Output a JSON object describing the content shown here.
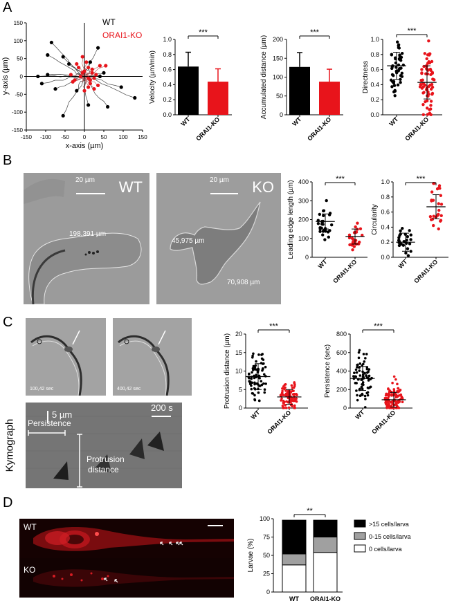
{
  "panels": {
    "A": "A",
    "B": "B",
    "C": "C",
    "D": "D"
  },
  "colors": {
    "wt": "#000000",
    "ko": "#e8141b",
    "mid": "#a0a0a0"
  },
  "trajectory": {
    "xlabel": "x-axis (µm)",
    "ylabel": "y-axis (µm)",
    "xticks": [
      "-150",
      "-100",
      "-50",
      "0",
      "50",
      "100",
      "150"
    ],
    "yticks": [
      "150",
      "100",
      "50",
      "0",
      "-50",
      "-100",
      "-150"
    ],
    "legend_wt": "WT",
    "legend_ko": "ORAI1-KO"
  },
  "cats": [
    "WT",
    "ORAI1-KO"
  ],
  "sig": {
    "three": "***",
    "two": "**"
  },
  "velocity": {
    "ylabel": "Velocity (µm/min)",
    "yticks": [
      "0.0",
      "0.2",
      "0.4",
      "0.6",
      "0.8",
      "1.0"
    ]
  },
  "accdist": {
    "ylabel": "Accumulated distance (µm)",
    "yticks": [
      "0",
      "50",
      "100",
      "150",
      "200"
    ]
  },
  "directness": {
    "ylabel": "Directness",
    "yticks": [
      "0.0",
      "0.2",
      "0.4",
      "0.6",
      "0.8",
      "1.0"
    ]
  },
  "leading": {
    "ylabel": "Leading edge length (µm)",
    "yticks": [
      "0",
      "100",
      "200",
      "300",
      "400"
    ]
  },
  "circularity": {
    "ylabel": "Circularity",
    "yticks": [
      "0.0",
      "0.2",
      "0.4",
      "0.6",
      "0.8",
      "1.0"
    ]
  },
  "protrusion": {
    "ylabel": "Protrusion distance (µm)",
    "yticks": [
      "0",
      "5",
      "10",
      "15",
      "20"
    ]
  },
  "persistence": {
    "ylabel": "Persistence (sec)",
    "yticks": [
      "0",
      "200",
      "400",
      "600",
      "800"
    ]
  },
  "larvae": {
    "ylabel": "Larvae (%)",
    "yticks": [
      "0",
      "25",
      "50",
      "75",
      "100"
    ],
    "legend": [
      ">15 cells/larva",
      "0-15 cells/larva",
      "0 cells/larva"
    ]
  },
  "micrographs": {
    "b_wt_label": "WT",
    "b_ko_label": "KO",
    "scale_20": "20 µm",
    "b_wt_len": "198,391 µm",
    "b_ko_len1": "45,975 µm",
    "b_ko_len2": "70,908 µm",
    "c_time1": "100,42 sec",
    "c_time2": "400,42 sec",
    "kymo_title": "Kymograph",
    "kymo_scale_um": "5 µm",
    "kymo_scale_s": "200 s",
    "kymo_persistence": "Persistence",
    "kymo_protrusion1": "Protrusion",
    "kymo_protrusion2": "distance",
    "d_wt": "WT",
    "d_ko": "KO"
  },
  "chart_data": [
    {
      "type": "scatter",
      "title": "",
      "xlabel": "x-axis (µm)",
      "ylabel": "y-axis (µm)",
      "xlim": [
        -150,
        150
      ],
      "ylim": [
        -150,
        150
      ],
      "series": [
        {
          "name": "WT",
          "x": [
            -85,
            -55,
            -95,
            -120,
            -75,
            35,
            50,
            95,
            130,
            60,
            -20,
            -55,
            10,
            -110,
            -95,
            -40,
            15,
            40
          ],
          "y": [
            95,
            55,
            60,
            0,
            -35,
            80,
            10,
            -30,
            -60,
            -85,
            -40,
            -110,
            -80,
            -20,
            5,
            35,
            40,
            0
          ]
        },
        {
          "name": "ORAI1-KO",
          "x": [
            -5,
            10,
            20,
            -15,
            30,
            5,
            -25,
            15,
            25,
            -10,
            40,
            0,
            -20,
            10,
            55,
            -35,
            15,
            35,
            -5,
            20,
            0,
            10,
            25,
            -30
          ],
          "y": [
            10,
            -5,
            20,
            25,
            5,
            40,
            -10,
            -20,
            -35,
            0,
            30,
            15,
            35,
            -30,
            30,
            5,
            -10,
            -25,
            55,
            10,
            -40,
            25,
            -5,
            -15
          ]
        }
      ]
    },
    {
      "type": "bar",
      "title": "",
      "ylabel": "Velocity (µm/min)",
      "categories": [
        "WT",
        "ORAI1-KO"
      ],
      "values": [
        0.64,
        0.44
      ],
      "error": [
        0.19,
        0.17
      ],
      "ylim": [
        0,
        1.0
      ]
    },
    {
      "type": "bar",
      "title": "",
      "ylabel": "Accumulated distance (µm)",
      "categories": [
        "WT",
        "ORAI1-KO"
      ],
      "values": [
        127,
        88
      ],
      "error": [
        38,
        33
      ],
      "ylim": [
        0,
        200
      ]
    },
    {
      "type": "scatter",
      "title": "",
      "ylabel": "Directness",
      "categories": [
        "WT",
        "ORAI1-KO"
      ],
      "mean": [
        0.65,
        0.43
      ],
      "sd": [
        0.18,
        0.22
      ],
      "n": [
        48,
        70
      ],
      "ylim": [
        0,
        1.0
      ]
    },
    {
      "type": "scatter",
      "title": "",
      "ylabel": "Leading edge length (µm)",
      "categories": [
        "WT",
        "ORAI1-KO"
      ],
      "mean": [
        190,
        110
      ],
      "sd": [
        40,
        40
      ],
      "n": [
        28,
        28
      ],
      "ylim": [
        0,
        400
      ]
    },
    {
      "type": "scatter",
      "title": "",
      "ylabel": "Circularity",
      "categories": [
        "WT",
        "ORAI1-KO"
      ],
      "mean": [
        0.2,
        0.67
      ],
      "sd": [
        0.12,
        0.16
      ],
      "n": [
        26,
        26
      ],
      "ylim": [
        0,
        1.0
      ]
    },
    {
      "type": "scatter",
      "title": "",
      "ylabel": "Protrusion distance (µm)",
      "categories": [
        "WT",
        "ORAI1-KO"
      ],
      "mean": [
        8.5,
        3.0
      ],
      "sd": [
        3.5,
        2.0
      ],
      "n": [
        75,
        85
      ],
      "ylim": [
        0,
        20
      ]
    },
    {
      "type": "scatter",
      "title": "",
      "ylabel": "Persistence (sec)",
      "categories": [
        "WT",
        "ORAI1-KO"
      ],
      "mean": [
        320,
        90
      ],
      "sd": [
        130,
        80
      ],
      "n": [
        80,
        110
      ],
      "ylim": [
        0,
        800
      ]
    },
    {
      "type": "bar",
      "title": "",
      "ylabel": "Larvae (%)",
      "categories": [
        "WT",
        "ORAI1-KO"
      ],
      "ylim": [
        0,
        100
      ],
      "stacked": true,
      "series": [
        {
          "name": "0 cells/larva",
          "values": [
            37,
            54
          ]
        },
        {
          "name": "0-15 cells/larva",
          "values": [
            15,
            21
          ]
        },
        {
          "name": ">15 cells/larva",
          "values": [
            46,
            23
          ]
        }
      ]
    }
  ]
}
